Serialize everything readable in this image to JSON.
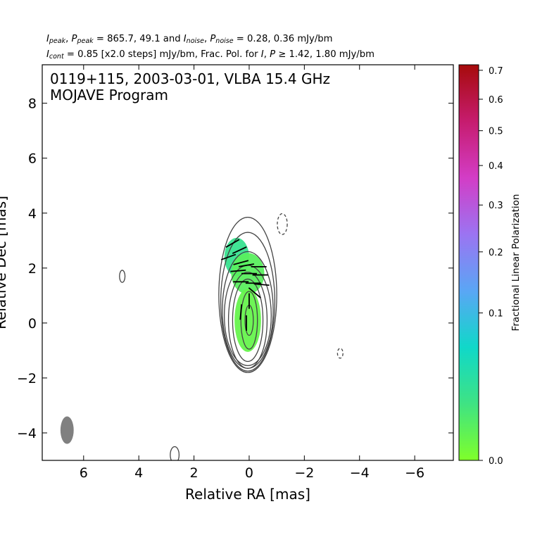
{
  "header": {
    "line1": {
      "peak_labels": [
        "I",
        "peak",
        "P",
        "peak"
      ],
      "peak_values": "865.7, 49.1",
      "noise_labels": [
        "I",
        "noise",
        "P",
        "noise"
      ],
      "noise_values": "0.28, 0.36 mJy/bm"
    },
    "line2": {
      "cont_label": [
        "I",
        "cont"
      ],
      "cont_text": "0.85 [x2.0 steps] mJy/bm, Frac. Pol. for",
      "fp_labels": [
        "I",
        "P"
      ],
      "fp_text": "1.42, 1.80 mJy/bm"
    }
  },
  "chart_data": {
    "type": "contour",
    "title_lines": [
      "0119+115, 2003-03-01, VLBA 15.4 GHz",
      "MOJAVE Program"
    ],
    "xlabel": "Relative RA [mas]",
    "ylabel": "Relative Dec [mas]",
    "xlim": [
      7.5,
      -7.4
    ],
    "ylim": [
      -5.0,
      9.4
    ],
    "xticks": [
      6,
      4,
      2,
      0,
      -2,
      -4,
      -6
    ],
    "yticks": [
      -4,
      -2,
      0,
      2,
      4,
      6,
      8
    ],
    "colorbar": {
      "label": "Fractional Linear Polarization",
      "range": [
        0.0,
        0.72
      ],
      "ticks": [
        0.0,
        0.1,
        0.2,
        0.3,
        0.4,
        0.5,
        0.6,
        0.7
      ],
      "colors": [
        "#7fff2a",
        "#3fe383",
        "#10d8c9",
        "#5aa6f5",
        "#9b74f2",
        "#d33dc6",
        "#c61c6e",
        "#a60b0b"
      ]
    },
    "contours": {
      "center": [
        0.05,
        0.1
      ],
      "levels": [
        {
          "rx": 0.55,
          "ry": 1.5
        },
        {
          "rx": 0.7,
          "ry": 1.75
        },
        {
          "rx": 0.85,
          "ry": 2.0,
          "extent": [
            -1.55,
            2.1
          ]
        },
        {
          "rx": 0.92,
          "ry": 2.2,
          "extent": [
            -1.65,
            2.6
          ]
        },
        {
          "rx": 0.98,
          "ry": 2.5,
          "extent": [
            -1.75,
            3.3
          ]
        },
        {
          "rx": 1.05,
          "ry": 2.9,
          "extent": [
            -1.8,
            3.85
          ]
        }
      ],
      "inner": [
        {
          "x": 0.0,
          "y": 0.1,
          "rx": 0.15,
          "ry": 0.55
        },
        {
          "x": 0.0,
          "y": 0.1,
          "rx": 0.3,
          "ry": 1.05
        }
      ],
      "isolated": [
        {
          "x": 4.6,
          "y": 1.7,
          "rx": 0.1,
          "ry": 0.22,
          "dashed": false
        },
        {
          "x": -1.2,
          "y": 3.6,
          "rx": 0.18,
          "ry": 0.38,
          "dashed": true
        },
        {
          "x": -3.3,
          "y": -1.1,
          "rx": 0.1,
          "ry": 0.18,
          "dashed": true
        },
        {
          "x": 2.7,
          "y": -4.8,
          "rx": 0.16,
          "ry": 0.3,
          "dashed": false
        }
      ]
    },
    "polarization_regions": [
      {
        "x": 0.45,
        "y": 2.4,
        "rx": 0.45,
        "ry": 0.7,
        "fpol": 0.12
      },
      {
        "x": 0.05,
        "y": 1.8,
        "rx": 0.6,
        "ry": 0.75,
        "fpol": 0.06
      },
      {
        "x": 0.05,
        "y": 0.1,
        "rx": 0.48,
        "ry": 1.15,
        "fpol": 0.04
      }
    ],
    "evpa_vectors": [
      {
        "x": 0.6,
        "y": 2.9,
        "angle": 30
      },
      {
        "x": 0.35,
        "y": 2.65,
        "angle": 25
      },
      {
        "x": 0.75,
        "y": 2.4,
        "angle": 20
      },
      {
        "x": 0.3,
        "y": 2.2,
        "angle": 15
      },
      {
        "x": 0.1,
        "y": 2.1,
        "angle": 10
      },
      {
        "x": -0.35,
        "y": 2.05,
        "angle": 0
      },
      {
        "x": 0.4,
        "y": 1.9,
        "angle": 5
      },
      {
        "x": 0.0,
        "y": 1.8,
        "angle": 0
      },
      {
        "x": -0.4,
        "y": 1.75,
        "angle": 0
      },
      {
        "x": 0.3,
        "y": 1.5,
        "angle": 0
      },
      {
        "x": -0.15,
        "y": 1.45,
        "angle": 0
      },
      {
        "x": -0.45,
        "y": 1.4,
        "angle": -5
      },
      {
        "x": -0.2,
        "y": 1.1,
        "angle": -40
      },
      {
        "x": 0.0,
        "y": 0.8,
        "angle": 90
      },
      {
        "x": 0.1,
        "y": 0.0,
        "angle": 90
      },
      {
        "x": 0.3,
        "y": 0.4,
        "angle": 85
      }
    ],
    "beam": {
      "x": 6.6,
      "y": -3.9,
      "major": 1.0,
      "minor": 0.48,
      "pa": 0
    }
  }
}
